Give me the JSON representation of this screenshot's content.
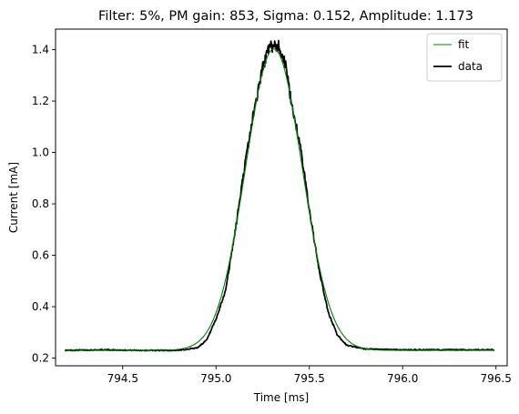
{
  "chart_data": {
    "type": "line",
    "title": "Filter: 5%, PM gain: 853, Sigma: 0.152, Amplitude: 1.173",
    "xlabel": "Time [ms]",
    "ylabel": "Current [mA]",
    "xlim": [
      794.14,
      796.56
    ],
    "ylim": [
      0.17,
      1.48
    ],
    "xticks": [
      794.5,
      795.0,
      795.5,
      796.0,
      796.5
    ],
    "xtick_labels": [
      "794.5",
      "795.0",
      "795.5",
      "796.0",
      "796.5"
    ],
    "yticks": [
      0.2,
      0.4,
      0.6,
      0.8,
      1.0,
      1.2,
      1.4
    ],
    "ytick_labels": [
      "0.2",
      "0.4",
      "0.6",
      "0.8",
      "1.0",
      "1.2",
      "1.4"
    ],
    "legend_position": "top-right",
    "grid": false,
    "series": [
      {
        "name": "fit",
        "color": "#008000",
        "style": "thin",
        "model": {
          "kind": "gaussian",
          "center": 795.31,
          "sigma": 0.152,
          "amplitude": 1.173,
          "offset": 0.23
        },
        "x_range": [
          794.19,
          796.49
        ]
      },
      {
        "name": "data",
        "color": "#000000",
        "style": "thick",
        "x": [
          794.19,
          794.4,
          794.6,
          794.8,
          794.9,
          794.95,
          795.0,
          795.05,
          795.1,
          795.15,
          795.2,
          795.25,
          795.28,
          795.31,
          795.34,
          795.37,
          795.4,
          795.45,
          795.5,
          795.55,
          795.6,
          795.65,
          795.7,
          795.8,
          796.0,
          796.49
        ],
        "y": [
          0.23,
          0.232,
          0.23,
          0.23,
          0.24,
          0.27,
          0.35,
          0.46,
          0.68,
          0.93,
          1.15,
          1.33,
          1.4,
          1.42,
          1.41,
          1.35,
          1.21,
          1.03,
          0.78,
          0.55,
          0.38,
          0.29,
          0.25,
          0.235,
          0.232,
          0.232
        ]
      }
    ]
  }
}
